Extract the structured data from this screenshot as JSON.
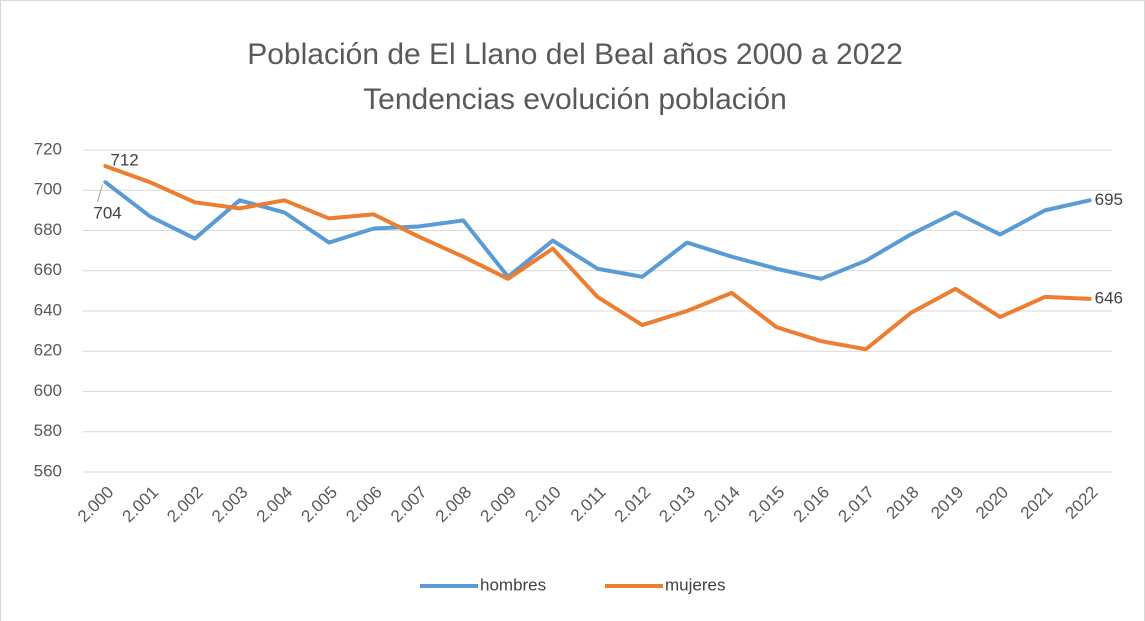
{
  "chart_data": {
    "type": "line",
    "title": "Población de El Llano del Beal años 2000 a 2022",
    "subtitle": "Tendencias evolución población",
    "categories": [
      "2.000",
      "2.001",
      "2.002",
      "2.003",
      "2.004",
      "2.005",
      "2.006",
      "2.007",
      "2.008",
      "2.009",
      "2.010",
      "2.011",
      "2.012",
      "2.013",
      "2.014",
      "2.015",
      "2.016",
      "2.017",
      "2018",
      "2019",
      "2020",
      "2021",
      "2022"
    ],
    "series": [
      {
        "name": "hombres",
        "color": "#5b9bd5",
        "values": [
          704,
          687,
          676,
          695,
          689,
          674,
          681,
          682,
          685,
          657,
          675,
          661,
          657,
          674,
          667,
          661,
          656,
          665,
          678,
          689,
          678,
          690,
          695
        ]
      },
      {
        "name": "mujeres",
        "color": "#ed7d31",
        "values": [
          712,
          704,
          694,
          691,
          695,
          686,
          688,
          677,
          667,
          656,
          671,
          647,
          633,
          640,
          649,
          632,
          625,
          621,
          639,
          651,
          637,
          647,
          646
        ]
      }
    ],
    "ylim": [
      560,
      720
    ],
    "yticks": [
      560,
      580,
      600,
      620,
      640,
      660,
      680,
      700,
      720
    ],
    "grid": true,
    "legend": "bottom"
  }
}
